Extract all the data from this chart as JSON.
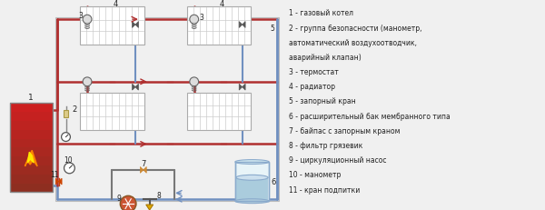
{
  "bg": "#f0f0f0",
  "hot": "#b03030",
  "cold": "#7090c0",
  "gray": "#909090",
  "lw_pipe": 1.8,
  "legend_lines": [
    "1 - газовый котел",
    "2 - группа безопасности (манометр,",
    "автоматический воздухоотводчик,",
    "аварийный клапан)",
    "3 - термостат",
    "4 - радиатор",
    "5 - запорный кран",
    "6 - расширительный бак мембранного типа",
    "7 - байпас с запорным краном",
    "8 - фильтр грязевик",
    "9 - циркуляционный насос",
    "10 - манометр",
    "11 - кран подпитки"
  ]
}
